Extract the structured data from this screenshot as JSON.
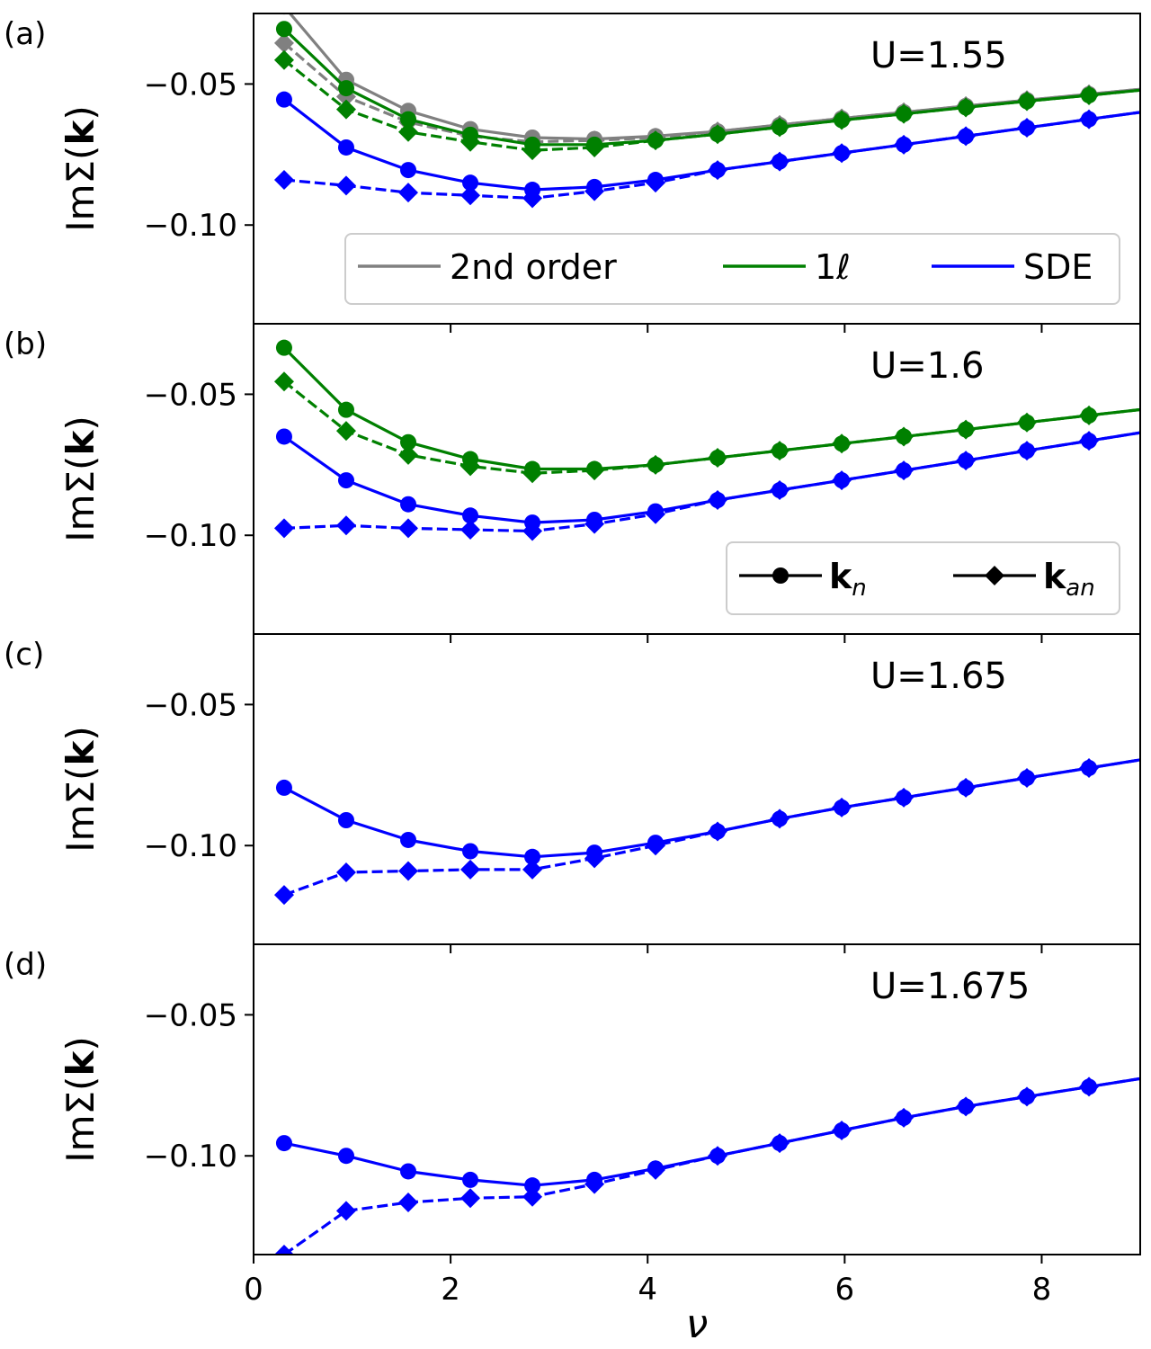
{
  "chart_data": {
    "type": "line",
    "x": [
      0.31,
      0.94,
      1.57,
      2.2,
      2.83,
      3.46,
      4.08,
      4.71,
      5.34,
      5.97,
      6.6,
      7.23,
      7.85,
      8.48,
      9.11
    ],
    "xlim": [
      0,
      9
    ],
    "ylim": [
      -0.135,
      -0.025
    ],
    "xticks": [
      0,
      2,
      4,
      6,
      8
    ],
    "xtick_labels": [
      "0",
      "2",
      "4",
      "6",
      "8"
    ],
    "yticks": [
      -0.05,
      -0.1
    ],
    "ytick_labels": [
      "−0.05",
      "−0.10"
    ],
    "xlabel": "ν",
    "ylabel_prefix": "ImΣ(",
    "ylabel_bold": "k",
    "ylabel_suffix": ")",
    "colors": {
      "second_order": "#808080",
      "one_loop": "#008000",
      "sde": "#0000ff"
    },
    "legend_methods": {
      "placement": "lower-center of panel (a)",
      "entries": [
        {
          "label": "2nd order",
          "color_key": "second_order"
        },
        {
          "label": "1ℓ",
          "color_key": "one_loop"
        },
        {
          "label": "SDE",
          "color_key": "sde"
        }
      ]
    },
    "legend_markers": {
      "placement": "lower-right of panel (b)",
      "entries": [
        {
          "bold": "k",
          "sub": "n",
          "marker": "circle"
        },
        {
          "bold": "k",
          "sub": "an",
          "marker": "diamond"
        }
      ]
    },
    "panels": [
      {
        "tag": "(a)",
        "U_label": "U=1.55",
        "series": [
          {
            "method": "second_order",
            "k": "n",
            "style": "solid",
            "marker": "circle",
            "values": [
              -0.0225,
              -0.0485,
              -0.0595,
              -0.066,
              -0.069,
              -0.0695,
              -0.0685,
              -0.0668,
              -0.0645,
              -0.0622,
              -0.06,
              -0.0578,
              -0.0557,
              -0.0536,
              -0.0515
            ]
          },
          {
            "method": "second_order",
            "k": "an",
            "style": "dashed",
            "marker": "diamond",
            "values": [
              -0.0355,
              -0.0545,
              -0.0635,
              -0.0685,
              -0.0705,
              -0.07,
              -0.069,
              -0.0668,
              -0.0645,
              -0.0622,
              -0.06,
              -0.0578,
              -0.0557,
              -0.0536,
              -0.0515
            ]
          },
          {
            "method": "one_loop",
            "k": "n",
            "style": "solid",
            "marker": "circle",
            "values": [
              -0.0305,
              -0.0515,
              -0.0625,
              -0.068,
              -0.0715,
              -0.0715,
              -0.07,
              -0.0678,
              -0.0653,
              -0.0628,
              -0.0606,
              -0.0583,
              -0.0561,
              -0.054,
              -0.0518
            ]
          },
          {
            "method": "one_loop",
            "k": "an",
            "style": "dashed",
            "marker": "diamond",
            "values": [
              -0.0415,
              -0.059,
              -0.067,
              -0.0705,
              -0.0735,
              -0.0725,
              -0.07,
              -0.0678,
              -0.0653,
              -0.0628,
              -0.0606,
              -0.0583,
              -0.0561,
              -0.054,
              -0.0518
            ]
          },
          {
            "method": "sde",
            "k": "n",
            "style": "solid",
            "marker": "circle",
            "values": [
              -0.0555,
              -0.0725,
              -0.0805,
              -0.085,
              -0.0875,
              -0.0865,
              -0.084,
              -0.0805,
              -0.0775,
              -0.0745,
              -0.0715,
              -0.0685,
              -0.0655,
              -0.0625,
              -0.0595
            ]
          },
          {
            "method": "sde",
            "k": "an",
            "style": "dashed",
            "marker": "diamond",
            "values": [
              -0.084,
              -0.086,
              -0.0885,
              -0.0895,
              -0.0905,
              -0.088,
              -0.085,
              -0.0805,
              -0.0775,
              -0.0745,
              -0.0715,
              -0.0685,
              -0.0655,
              -0.0625,
              -0.0595
            ]
          }
        ]
      },
      {
        "tag": "(b)",
        "U_label": "U=1.6",
        "series": [
          {
            "method": "one_loop",
            "k": "n",
            "style": "solid",
            "marker": "circle",
            "values": [
              -0.0335,
              -0.0555,
              -0.067,
              -0.073,
              -0.0765,
              -0.0765,
              -0.075,
              -0.0725,
              -0.07,
              -0.0675,
              -0.065,
              -0.0625,
              -0.06,
              -0.0575,
              -0.055
            ]
          },
          {
            "method": "one_loop",
            "k": "an",
            "style": "dashed",
            "marker": "diamond",
            "values": [
              -0.0455,
              -0.063,
              -0.0715,
              -0.0755,
              -0.078,
              -0.077,
              -0.075,
              -0.0725,
              -0.07,
              -0.0675,
              -0.065,
              -0.0625,
              -0.06,
              -0.0575,
              -0.055
            ]
          },
          {
            "method": "sde",
            "k": "n",
            "style": "solid",
            "marker": "circle",
            "values": [
              -0.065,
              -0.0805,
              -0.089,
              -0.093,
              -0.0955,
              -0.0945,
              -0.0915,
              -0.0875,
              -0.084,
              -0.0805,
              -0.077,
              -0.0735,
              -0.07,
              -0.0665,
              -0.063
            ]
          },
          {
            "method": "sde",
            "k": "an",
            "style": "dashed",
            "marker": "diamond",
            "values": [
              -0.0975,
              -0.0965,
              -0.0975,
              -0.098,
              -0.0985,
              -0.096,
              -0.0925,
              -0.0875,
              -0.084,
              -0.0805,
              -0.077,
              -0.0735,
              -0.07,
              -0.0665,
              -0.063
            ]
          }
        ]
      },
      {
        "tag": "(c)",
        "U_label": "U=1.65",
        "series": [
          {
            "method": "sde",
            "k": "n",
            "style": "solid",
            "marker": "circle",
            "values": [
              -0.0795,
              -0.091,
              -0.098,
              -0.102,
              -0.104,
              -0.1025,
              -0.099,
              -0.095,
              -0.0905,
              -0.0865,
              -0.083,
              -0.0795,
              -0.076,
              -0.0725,
              -0.069
            ]
          },
          {
            "method": "sde",
            "k": "an",
            "style": "dashed",
            "marker": "diamond",
            "values": [
              -0.1175,
              -0.1095,
              -0.109,
              -0.1085,
              -0.1085,
              -0.1045,
              -0.1,
              -0.095,
              -0.0905,
              -0.0865,
              -0.083,
              -0.0795,
              -0.076,
              -0.0725,
              -0.069
            ]
          }
        ]
      },
      {
        "tag": "(d)",
        "U_label": "U=1.675",
        "series": [
          {
            "method": "sde",
            "k": "n",
            "style": "solid",
            "marker": "circle",
            "values": [
              -0.0955,
              -0.1,
              -0.1055,
              -0.1085,
              -0.1105,
              -0.1085,
              -0.1045,
              -0.1,
              -0.0955,
              -0.091,
              -0.0865,
              -0.0825,
              -0.079,
              -0.0755,
              -0.072
            ]
          },
          {
            "method": "sde",
            "k": "an",
            "style": "dashed",
            "marker": "diamond",
            "values": [
              -0.135,
              -0.1195,
              -0.1165,
              -0.115,
              -0.1145,
              -0.11,
              -0.105,
              -0.1,
              -0.0955,
              -0.091,
              -0.0865,
              -0.0825,
              -0.079,
              -0.0755,
              -0.072
            ]
          }
        ]
      }
    ]
  }
}
